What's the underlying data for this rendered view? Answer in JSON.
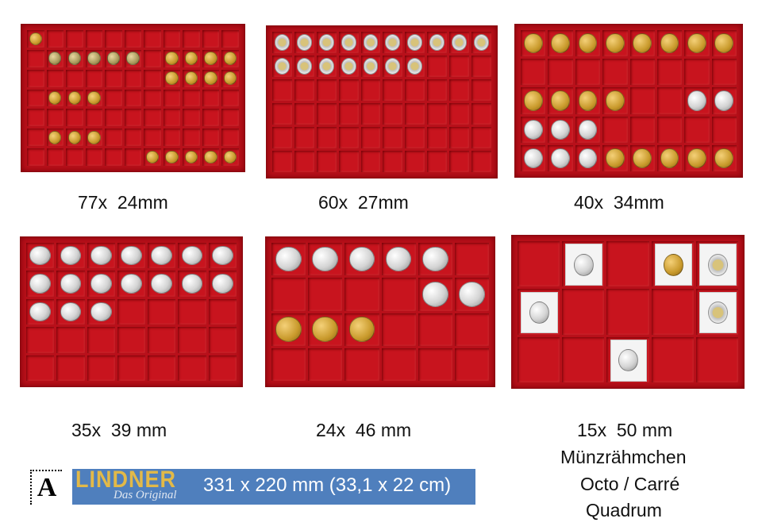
{
  "trays": [
    {
      "label": "77x  24mm",
      "cols": 11,
      "rows": 7
    },
    {
      "label": "60x  27mm",
      "cols": 10,
      "rows": 6
    },
    {
      "label": "40x  34mm",
      "cols": 8,
      "rows": 5
    },
    {
      "label": "35x  39 mm",
      "cols": 7,
      "rows": 5
    },
    {
      "label": "24x  46 mm",
      "cols": 6,
      "rows": 4
    },
    {
      "label": "15x  50 mm",
      "cols": 5,
      "rows": 3
    }
  ],
  "extra_lines": [
    "Münzrähmchen",
    "Octo / Carré",
    "Quadrum"
  ],
  "logo": {
    "brand": "LINDNER",
    "tagline": "Das Original",
    "stamp_letter": "A"
  },
  "dimensions": "331 x 220 mm (33,1 x 22 cm)",
  "colors": {
    "tray": "#b8101a",
    "banner": "#4f7fbd",
    "brand_gold": "#e2b948"
  }
}
